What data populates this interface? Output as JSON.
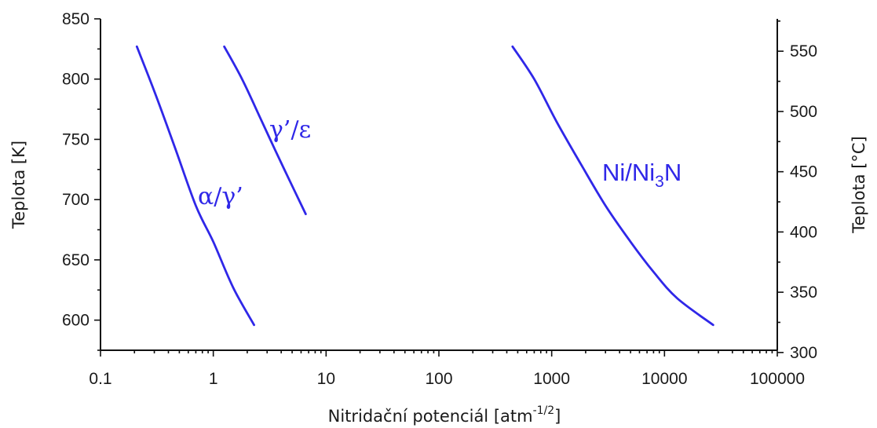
{
  "chart_data": {
    "type": "line",
    "xscale": "log",
    "xlabel": "Nitridační potenciál [atm",
    "xlabel_sup": "-1/2",
    "xlabel_end": "]",
    "ylabel": "Teplota [K]",
    "y2label": "Teplota [°C]",
    "xlim": [
      0.1,
      100000
    ],
    "ylim": [
      575,
      850
    ],
    "y2lim": [
      301.85,
      576.85
    ],
    "x_ticks": [
      "0.1",
      "1",
      "10",
      "100",
      "1000",
      "10000",
      "100000"
    ],
    "y_ticks": [
      "600",
      "650",
      "700",
      "750",
      "800",
      "850"
    ],
    "y2_ticks": [
      "300",
      "350",
      "400",
      "450",
      "500",
      "550"
    ],
    "grid": false,
    "color": "#2f27e8",
    "series": [
      {
        "name": "α/γ’",
        "x": [
          0.21,
          0.3,
          0.45,
          0.7,
          1.0,
          1.5,
          2.3
        ],
        "y": [
          827,
          790,
          745,
          695,
          665,
          627,
          596
        ]
      },
      {
        "name": "γ’/ε",
        "x": [
          1.25,
          1.8,
          2.6,
          3.5,
          4.8,
          6.6
        ],
        "y": [
          827,
          800,
          768,
          742,
          715,
          688
        ]
      },
      {
        "name": "Ni/Ni3N",
        "x": [
          450,
          700,
          1100,
          1800,
          3000,
          5000,
          8000,
          13000,
          27000
        ],
        "y": [
          827,
          800,
          765,
          730,
          695,
          665,
          640,
          618,
          596
        ]
      }
    ]
  }
}
